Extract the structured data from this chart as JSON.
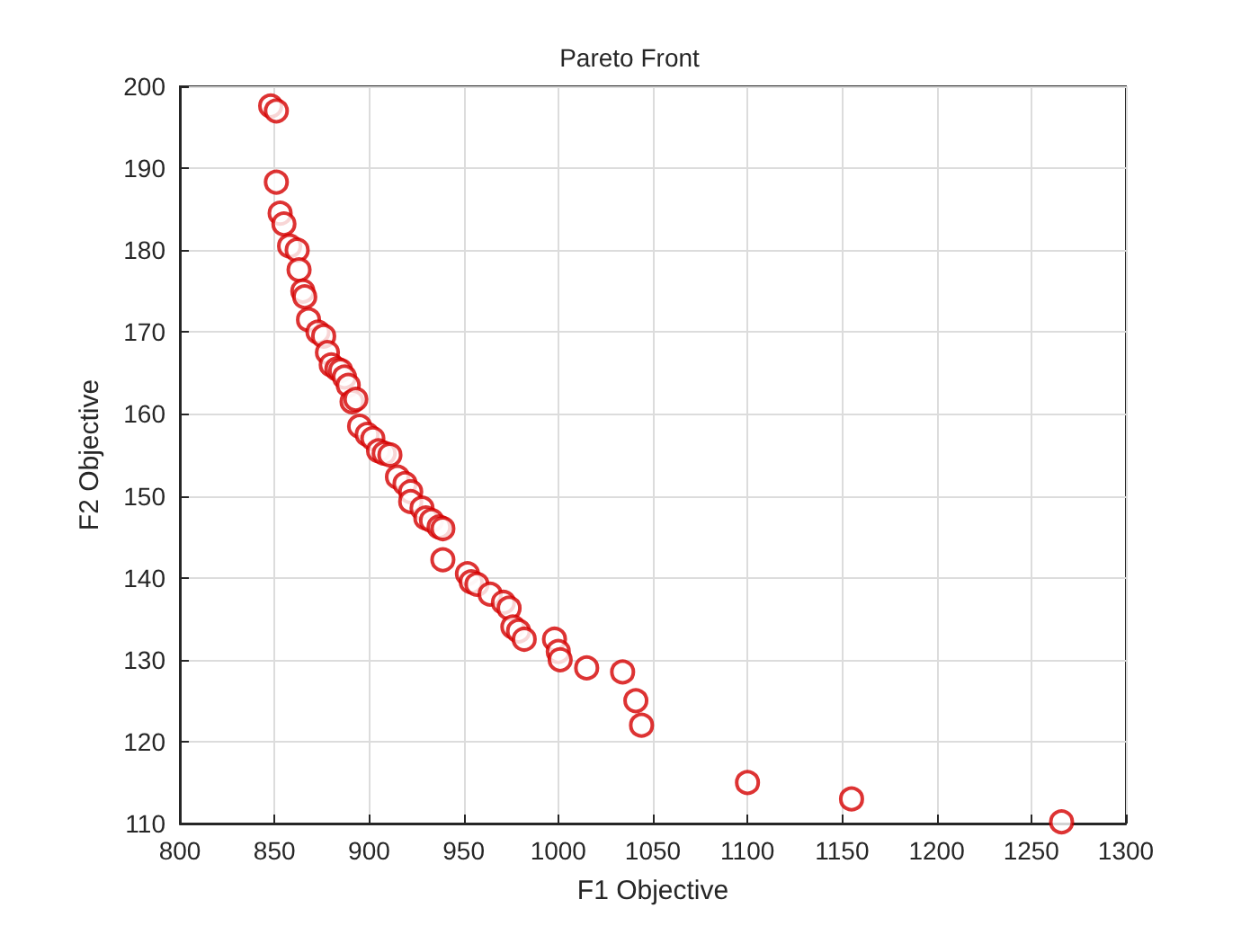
{
  "chart_data": {
    "type": "scatter",
    "title": "Pareto Front",
    "xlabel": "F1 Objective",
    "ylabel": "F2 Objective",
    "xlim": [
      800,
      1300
    ],
    "xticks": [
      800,
      850,
      900,
      950,
      1000,
      1050,
      1100,
      1150,
      1200,
      1250,
      1300
    ],
    "ylim": [
      110,
      200
    ],
    "yticks": [
      110,
      120,
      130,
      140,
      150,
      160,
      170,
      180,
      190,
      200
    ],
    "grid": true,
    "marker": "circle",
    "series": [
      {
        "color": "#d40000",
        "x": [
          848,
          851,
          851,
          853,
          855,
          858,
          862,
          863,
          865,
          866,
          868,
          873,
          876,
          878,
          880,
          883,
          885,
          887,
          889,
          891,
          893,
          895,
          899,
          902,
          905,
          908,
          911,
          915,
          919,
          922,
          922,
          928,
          930,
          933,
          937,
          939,
          939,
          952,
          954,
          957,
          964,
          971,
          974,
          976,
          979,
          982,
          998,
          1000,
          1001,
          1015,
          1034,
          1041,
          1044,
          1100,
          1155,
          1266
        ],
        "values": [
          197.6,
          197,
          188.3,
          184.5,
          183.2,
          180.5,
          180,
          177.6,
          175,
          174.3,
          171.5,
          170,
          169.5,
          167.5,
          166,
          165.5,
          165.3,
          164.5,
          163.5,
          161.5,
          161.8,
          158.5,
          157.5,
          157,
          155.5,
          155.2,
          155,
          152.3,
          151.5,
          150.5,
          149.3,
          148.5,
          147.3,
          147,
          146.2,
          146,
          142.2,
          140.5,
          139.5,
          139.2,
          138,
          137,
          136.3,
          134,
          133.5,
          132.5,
          132.5,
          131,
          130,
          129,
          128.5,
          125,
          122,
          115,
          113,
          110.2
        ]
      }
    ]
  }
}
